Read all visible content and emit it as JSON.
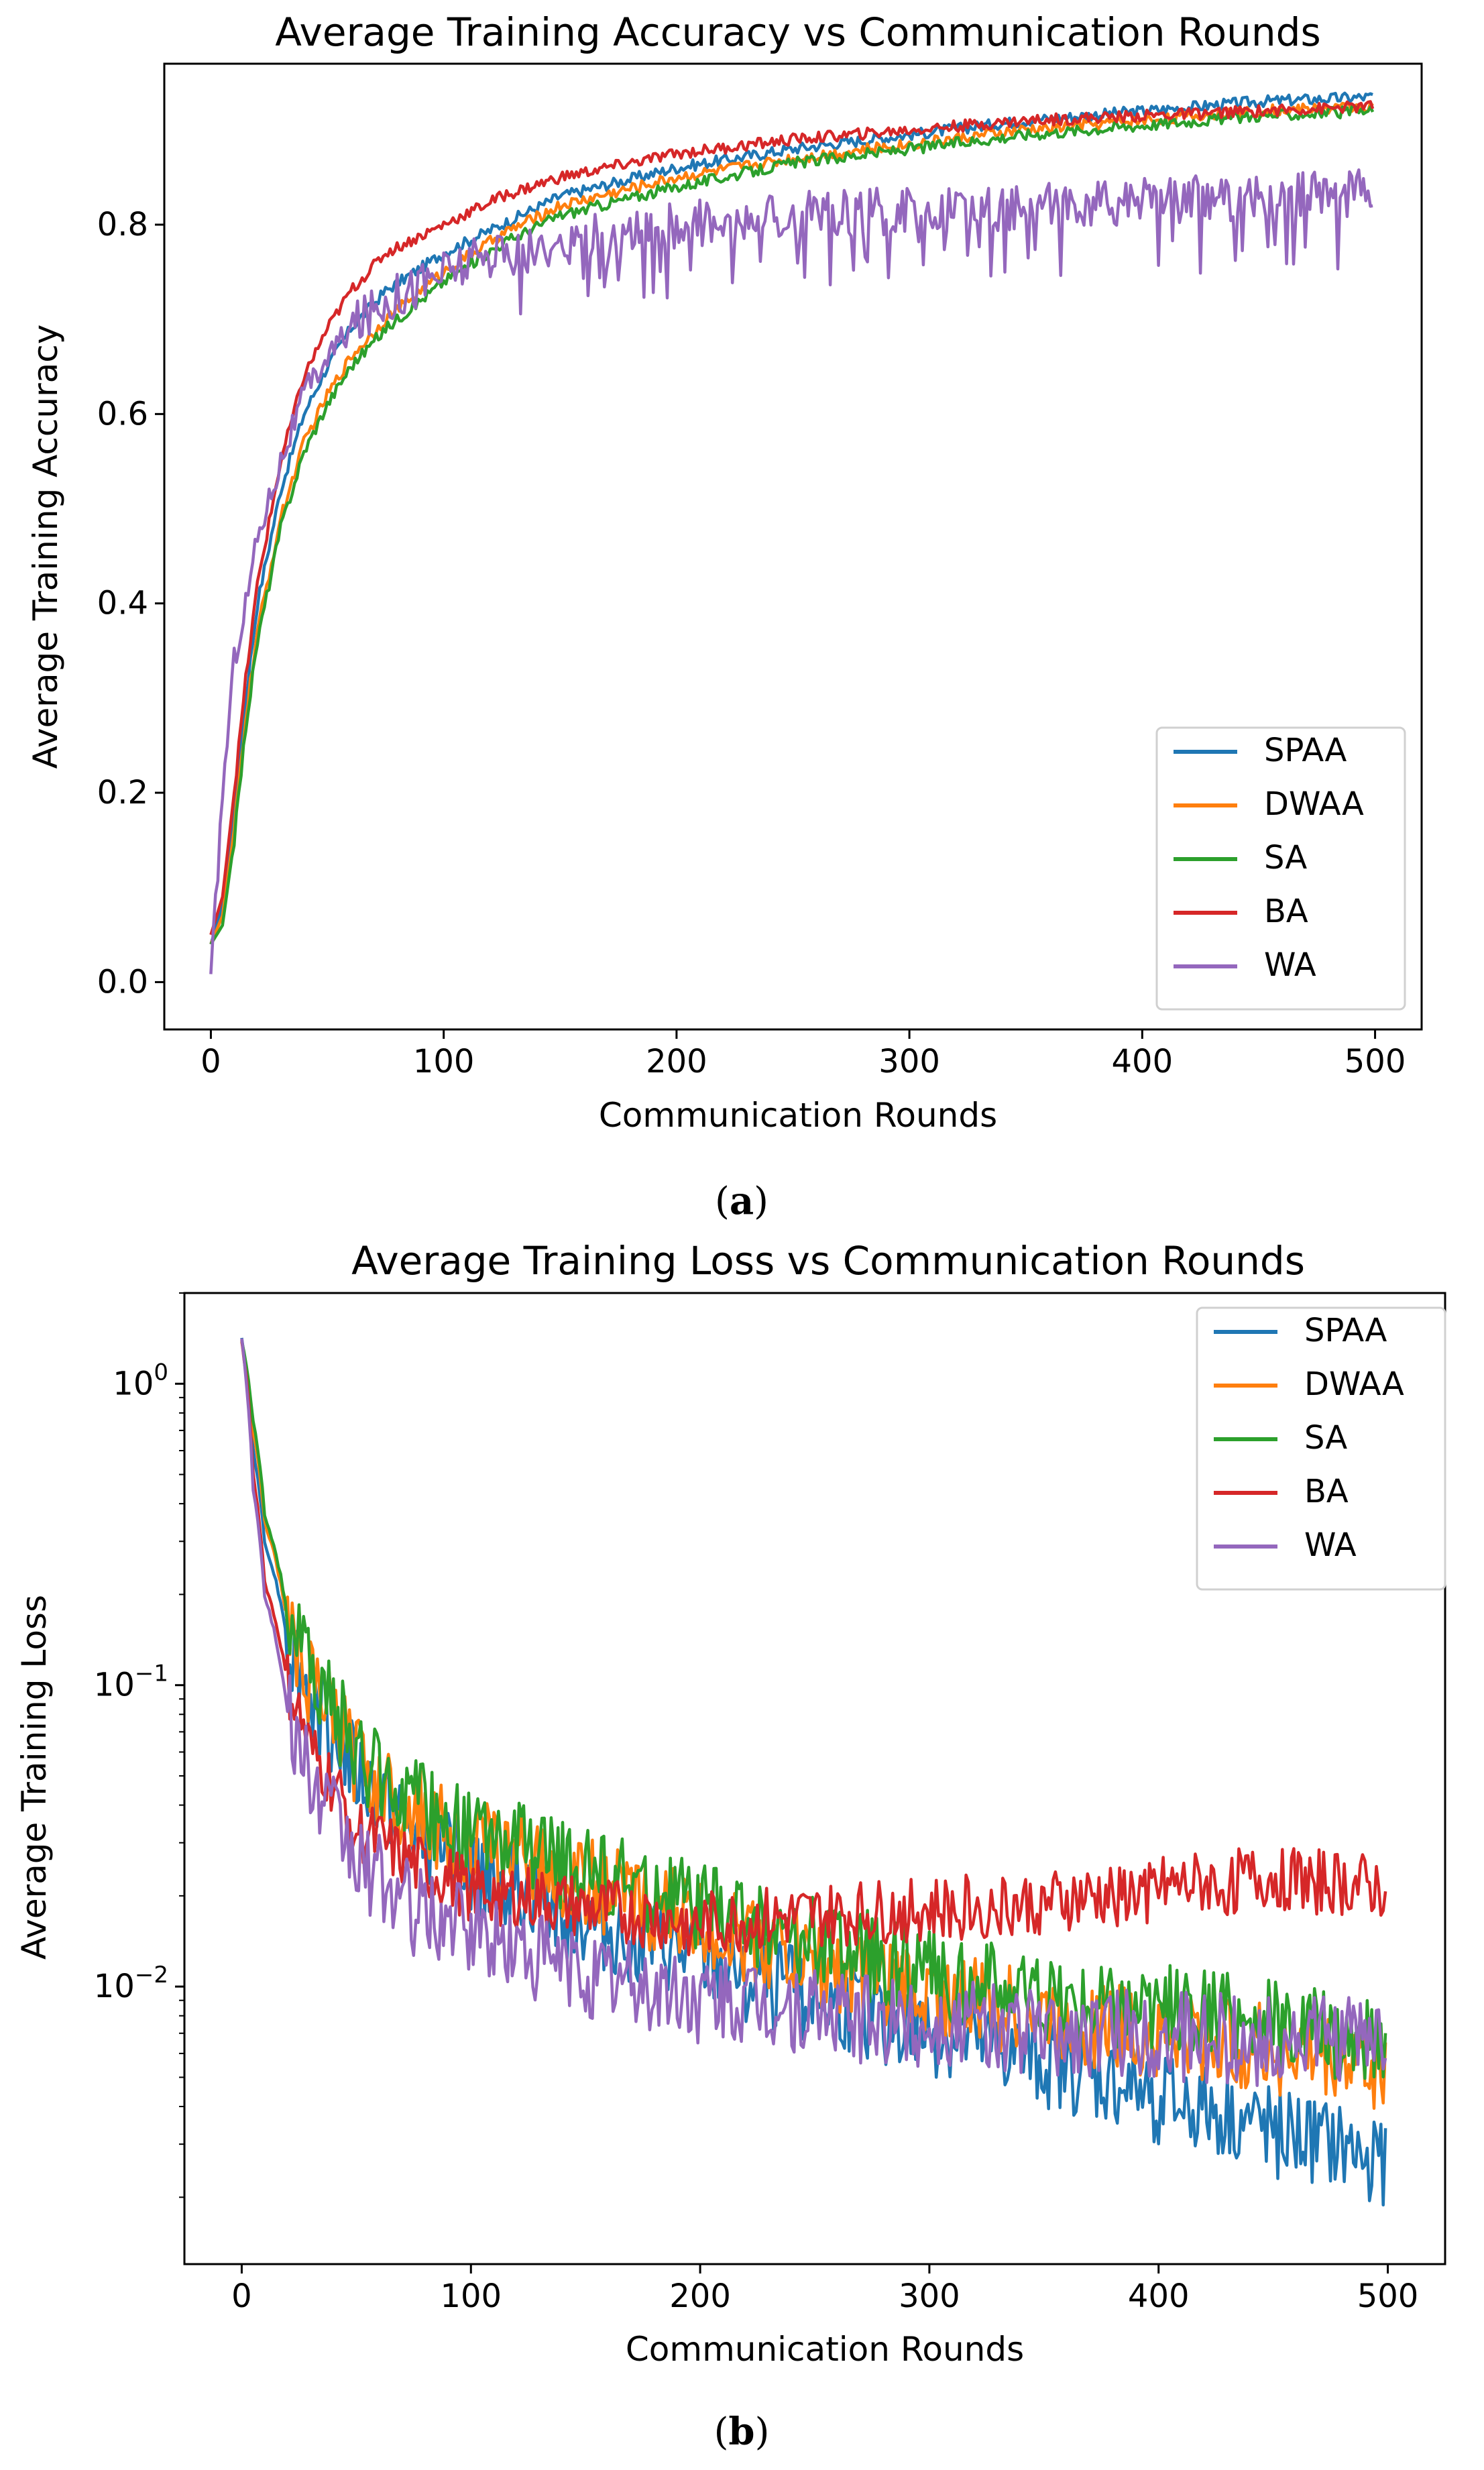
{
  "chart_data": [
    {
      "type": "line",
      "title": "Average Training Accuracy vs Communication Rounds",
      "xlabel": "Communication Rounds",
      "ylabel": "Average Training Accuracy",
      "caption_letter": "a",
      "xlim": [
        -20,
        520
      ],
      "ylim": [
        -0.05,
        0.97
      ],
      "yscale": "linear",
      "xticks": [
        0,
        100,
        200,
        300,
        400,
        500
      ],
      "yticks": [
        0.0,
        0.2,
        0.4,
        0.6,
        0.8
      ],
      "ytick_labels": [
        "0.0",
        "0.2",
        "0.4",
        "0.6",
        "0.8"
      ],
      "legend_position": "lower-right",
      "series": [
        {
          "name": "SPAA",
          "color": "#1f77b4",
          "x": [
            0,
            5,
            10,
            15,
            20,
            30,
            40,
            50,
            60,
            75,
            100,
            125,
            150,
            200,
            250,
            300,
            350,
            400,
            450,
            499
          ],
          "y": [
            0.04,
            0.08,
            0.18,
            0.3,
            0.4,
            0.52,
            0.6,
            0.65,
            0.69,
            0.73,
            0.77,
            0.8,
            0.83,
            0.86,
            0.88,
            0.895,
            0.91,
            0.92,
            0.93,
            0.935
          ]
        },
        {
          "name": "DWAA",
          "color": "#ff7f0e",
          "x": [
            0,
            5,
            10,
            15,
            20,
            30,
            40,
            50,
            60,
            75,
            100,
            125,
            150,
            200,
            250,
            300,
            350,
            400,
            450,
            499
          ],
          "y": [
            0.04,
            0.07,
            0.16,
            0.28,
            0.37,
            0.49,
            0.57,
            0.62,
            0.66,
            0.7,
            0.75,
            0.79,
            0.82,
            0.85,
            0.87,
            0.885,
            0.9,
            0.91,
            0.92,
            0.925
          ]
        },
        {
          "name": "SA",
          "color": "#2ca02c",
          "x": [
            0,
            5,
            10,
            15,
            20,
            30,
            40,
            50,
            60,
            75,
            100,
            125,
            150,
            200,
            250,
            300,
            350,
            400,
            450,
            499
          ],
          "y": [
            0.04,
            0.06,
            0.15,
            0.27,
            0.36,
            0.48,
            0.56,
            0.61,
            0.65,
            0.69,
            0.74,
            0.78,
            0.81,
            0.84,
            0.865,
            0.88,
            0.895,
            0.905,
            0.915,
            0.92
          ]
        },
        {
          "name": "BA",
          "color": "#d62728",
          "x": [
            0,
            5,
            10,
            15,
            20,
            30,
            40,
            50,
            60,
            75,
            100,
            125,
            150,
            200,
            250,
            300,
            350,
            400,
            450,
            499
          ],
          "y": [
            0.05,
            0.09,
            0.2,
            0.32,
            0.42,
            0.55,
            0.64,
            0.69,
            0.73,
            0.77,
            0.8,
            0.83,
            0.85,
            0.875,
            0.89,
            0.9,
            0.91,
            0.915,
            0.92,
            0.925
          ]
        },
        {
          "name": "WA",
          "color": "#9467bd",
          "x": [
            0,
            5,
            10,
            15,
            20,
            30,
            40,
            50,
            60,
            75,
            100,
            125,
            150,
            200,
            250,
            300,
            350,
            400,
            450,
            499
          ],
          "y": [
            0.0,
            0.2,
            0.34,
            0.4,
            0.47,
            0.55,
            0.62,
            0.66,
            0.69,
            0.72,
            0.75,
            0.77,
            0.78,
            0.8,
            0.81,
            0.815,
            0.82,
            0.825,
            0.83,
            0.835
          ]
        }
      ]
    },
    {
      "type": "line",
      "title": "Average Training Loss vs Communication Rounds",
      "xlabel": "Communication Rounds",
      "ylabel": "Average Training Loss",
      "caption_letter": "b",
      "xlim": [
        -25,
        525
      ],
      "ylim": [
        0.0012,
        2.0
      ],
      "yscale": "log",
      "xticks": [
        0,
        100,
        200,
        300,
        400,
        500
      ],
      "yticks": [
        1,
        0.1,
        0.01
      ],
      "ytick_labels": [
        {
          "base": "10",
          "exp": "0"
        },
        {
          "base": "10",
          "exp": "−1"
        },
        {
          "base": "10",
          "exp": "−2"
        }
      ],
      "legend_position": "top-right",
      "series": [
        {
          "name": "SPAA",
          "color": "#1f77b4",
          "x": [
            0,
            5,
            10,
            20,
            30,
            50,
            75,
            100,
            150,
            200,
            250,
            300,
            350,
            400,
            450,
            499
          ],
          "y": [
            1.4,
            0.6,
            0.3,
            0.14,
            0.09,
            0.05,
            0.032,
            0.025,
            0.016,
            0.012,
            0.009,
            0.007,
            0.0055,
            0.0042,
            0.0033,
            0.0026
          ]
        },
        {
          "name": "DWAA",
          "color": "#ff7f0e",
          "x": [
            0,
            5,
            10,
            20,
            30,
            50,
            75,
            100,
            150,
            200,
            250,
            300,
            350,
            400,
            450,
            499
          ],
          "y": [
            1.4,
            0.7,
            0.35,
            0.16,
            0.1,
            0.055,
            0.038,
            0.03,
            0.022,
            0.016,
            0.012,
            0.0095,
            0.008,
            0.007,
            0.0062,
            0.0055
          ]
        },
        {
          "name": "SA",
          "color": "#2ca02c",
          "x": [
            0,
            5,
            10,
            20,
            30,
            50,
            75,
            100,
            150,
            200,
            250,
            300,
            350,
            400,
            450,
            499
          ],
          "y": [
            1.4,
            0.75,
            0.37,
            0.17,
            0.11,
            0.058,
            0.04,
            0.032,
            0.024,
            0.018,
            0.014,
            0.011,
            0.009,
            0.0085,
            0.0075,
            0.0065
          ]
        },
        {
          "name": "BA",
          "color": "#d62728",
          "x": [
            0,
            5,
            10,
            20,
            30,
            50,
            75,
            100,
            150,
            200,
            250,
            300,
            350,
            400,
            450,
            499
          ],
          "y": [
            1.4,
            0.5,
            0.22,
            0.1,
            0.06,
            0.033,
            0.025,
            0.021,
            0.018,
            0.016,
            0.017,
            0.018,
            0.019,
            0.021,
            0.023,
            0.021
          ]
        },
        {
          "name": "WA",
          "color": "#9467bd",
          "x": [
            0,
            5,
            10,
            20,
            30,
            50,
            75,
            100,
            150,
            200,
            250,
            300,
            350,
            400,
            450,
            499
          ],
          "y": [
            1.4,
            0.45,
            0.2,
            0.08,
            0.045,
            0.026,
            0.018,
            0.015,
            0.011,
            0.009,
            0.008,
            0.0075,
            0.007,
            0.0068,
            0.0066,
            0.0065
          ]
        }
      ]
    }
  ]
}
